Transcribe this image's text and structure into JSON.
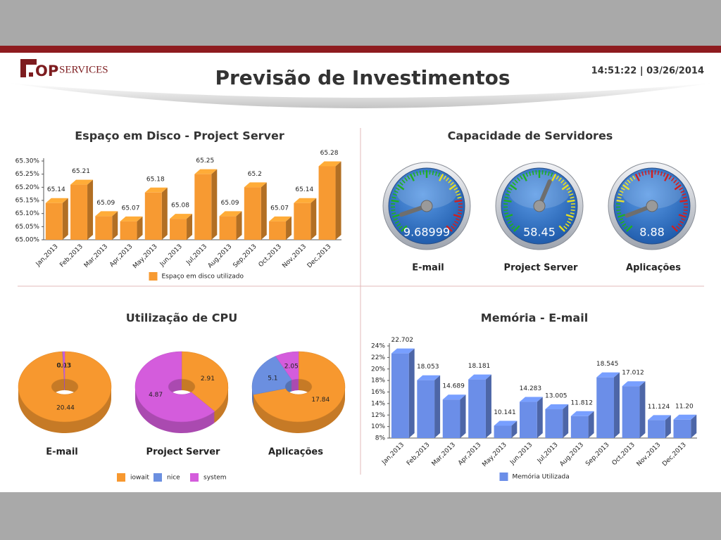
{
  "header": {
    "logo_text": "OP",
    "logo_suffix": "SERVICES",
    "title": "Previsão de Investimentos",
    "timestamp": "14:51:22 | 03/26/2014"
  },
  "chart_data": [
    {
      "type": "bar",
      "title": "Espaço em Disco - Project Server",
      "categories": [
        "Jan,2013",
        "Feb,2013",
        "Mar,2013",
        "Apr,2013",
        "May,2013",
        "Jun,2013",
        "Jul,2013",
        "Aug,2013",
        "Sep,2013",
        "Oct,2013",
        "Nov,2013",
        "Dec,2013"
      ],
      "series": [
        {
          "name": "Espaço em disco utilizado",
          "color": "#f79a32",
          "values": [
            65.14,
            65.21,
            65.09,
            65.07,
            65.18,
            65.08,
            65.25,
            65.09,
            65.2,
            65.07,
            65.14,
            65.28
          ]
        }
      ],
      "ylim": [
        65.0,
        65.3
      ],
      "yticks": [
        {
          "value": 65.0,
          "label": "65.00%"
        },
        {
          "value": 65.05,
          "label": "65.05%"
        },
        {
          "value": 65.1,
          "label": "65.10%"
        },
        {
          "value": 65.15,
          "label": "65.15%"
        },
        {
          "value": 65.2,
          "label": "65.20%"
        },
        {
          "value": 65.25,
          "label": "65.25%"
        },
        {
          "value": 65.3,
          "label": "65.30%"
        }
      ]
    },
    {
      "type": "gauge",
      "title": "Capacidade de Servidores",
      "categories": [
        "E-mail",
        "Project Server",
        "Aplicações"
      ],
      "values": [
        9.68999,
        58.45,
        8.88
      ],
      "ylim": [
        0,
        100
      ],
      "colors": [
        [
          "#20b020",
          "#20b020",
          "#20b020",
          "#e8e020",
          "#d02020"
        ],
        [
          "#20b020",
          "#20b020",
          "#20b020",
          "#e8e020",
          "#e8e020"
        ],
        [
          "#20b020",
          "#e8e030",
          "#d02020",
          "#d02020",
          "#d02020"
        ]
      ]
    },
    {
      "type": "pie",
      "title": "Utilização de CPU",
      "categories": [
        "E-mail",
        "Project Server",
        "Aplicações"
      ],
      "series": [
        {
          "name": "iowait",
          "color": "#f7982f",
          "values": [
            20.44,
            2.91,
            17.84
          ]
        },
        {
          "name": "nice",
          "color": "#6b8fe0",
          "values": [
            0.03,
            null,
            5.1
          ]
        },
        {
          "name": "system",
          "color": "#d45cdc",
          "values": [
            0.13,
            4.87,
            2.05
          ]
        }
      ]
    },
    {
      "type": "bar",
      "title": "Memória - E-mail",
      "categories": [
        "Jan,2013",
        "Feb,2013",
        "Mar,2013",
        "Apr,2013",
        "May,2013",
        "Jun,2013",
        "Jul,2013",
        "Aug,2013",
        "Sep,2013",
        "Oct,2013",
        "Nov,2013",
        "Dec,2013"
      ],
      "series": [
        {
          "name": "Memória Utilizada",
          "color": "#6b8ee8",
          "values": [
            22.702,
            18.053,
            14.689,
            18.181,
            10.141,
            14.283,
            13.005,
            11.812,
            18.545,
            17.012,
            11.124,
            11.2
          ],
          "value_labels": [
            "22.702",
            "18.053",
            "14.689",
            "18.181",
            "10.141",
            "14.283",
            "13.005",
            "11.812",
            "18.545",
            "17.012",
            "11.124",
            "11.20"
          ]
        }
      ],
      "ylim": [
        8,
        24
      ],
      "yticks": [
        {
          "value": 8,
          "label": "8%"
        },
        {
          "value": 10,
          "label": "10%"
        },
        {
          "value": 12,
          "label": "12%"
        },
        {
          "value": 14,
          "label": "14%"
        },
        {
          "value": 16,
          "label": "16%"
        },
        {
          "value": 18,
          "label": "18%"
        },
        {
          "value": 20,
          "label": "20%"
        },
        {
          "value": 22,
          "label": "22%"
        },
        {
          "value": 24,
          "label": "24%"
        }
      ]
    }
  ]
}
